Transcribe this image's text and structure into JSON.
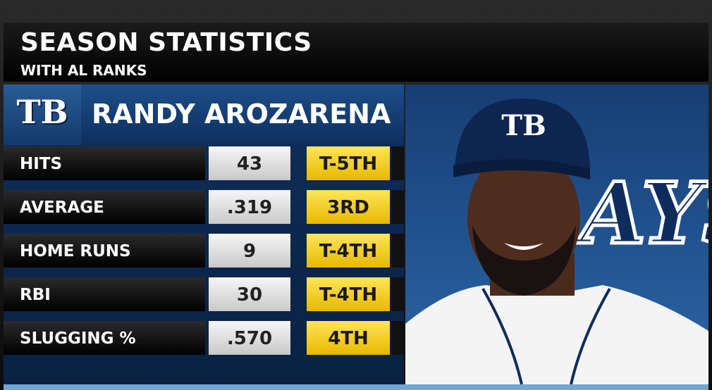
{
  "header": {
    "title": "SEASON STATISTICS",
    "subtitle": "WITH AL RANKS"
  },
  "player": {
    "name": "RANDY AROZARENA",
    "team_logo": "TB",
    "cap_logo": "TB",
    "background_logo": "AYS"
  },
  "table": {
    "rows": [
      [
        "HITS",
        "43",
        "T-5TH"
      ],
      [
        "AVERAGE",
        ".319",
        "3RD"
      ],
      [
        "HOME RUNS",
        "9",
        "T-4TH"
      ],
      [
        "RBI",
        "30",
        "T-4TH"
      ],
      [
        "SLUGGING %",
        ".570",
        "4TH"
      ]
    ]
  }
}
